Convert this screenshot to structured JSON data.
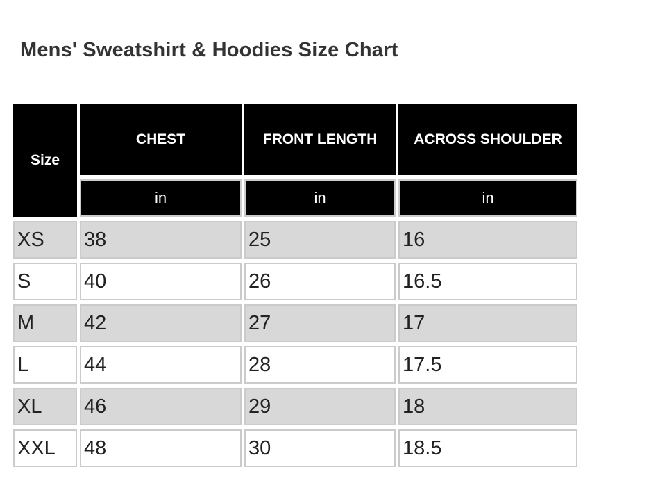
{
  "page": {
    "title": "Mens' Sweatshirt & Hoodies Size Chart"
  },
  "table": {
    "corner_header": "Size",
    "headers": [
      "CHEST",
      "FRONT LENGTH",
      "ACROSS SHOULDER"
    ],
    "units": [
      "in",
      "in",
      "in"
    ],
    "rows": [
      {
        "size": "XS",
        "chest": "38",
        "front_length": "25",
        "across_shoulder": "16"
      },
      {
        "size": "S",
        "chest": "40",
        "front_length": "26",
        "across_shoulder": "16.5"
      },
      {
        "size": "M",
        "chest": "42",
        "front_length": "27",
        "across_shoulder": "17"
      },
      {
        "size": "L",
        "chest": "44",
        "front_length": "28",
        "across_shoulder": "17.5"
      },
      {
        "size": "XL",
        "chest": "46",
        "front_length": "29",
        "across_shoulder": "18"
      },
      {
        "size": "XXL",
        "chest": "48",
        "front_length": "30",
        "across_shoulder": "18.5"
      }
    ]
  },
  "colors": {
    "header_bg": "#000000",
    "header_text": "#ffffff",
    "alt_row_bg": "#d8d8d8",
    "cell_border": "#cbcbcb",
    "body_text": "#222222",
    "title_text": "#333333",
    "page_bg": "#ffffff"
  },
  "chart_data": {
    "type": "table",
    "title": "Mens' Sweatshirt & Hoodies Size Chart",
    "columns": [
      "Size",
      "CHEST (in)",
      "FRONT LENGTH (in)",
      "ACROSS SHOULDER (in)"
    ],
    "rows": [
      [
        "XS",
        38,
        25,
        16
      ],
      [
        "S",
        40,
        26,
        16.5
      ],
      [
        "M",
        42,
        27,
        17
      ],
      [
        "L",
        44,
        28,
        17.5
      ],
      [
        "XL",
        46,
        29,
        18
      ],
      [
        "XXL",
        48,
        30,
        18.5
      ]
    ],
    "layout_hints": {
      "header_style": "black background, white bold text, centered",
      "unit_subheader_row": true,
      "row_striping": "odd rows gray (#d8d8d8), even rows white",
      "body_alignment": "left"
    }
  }
}
